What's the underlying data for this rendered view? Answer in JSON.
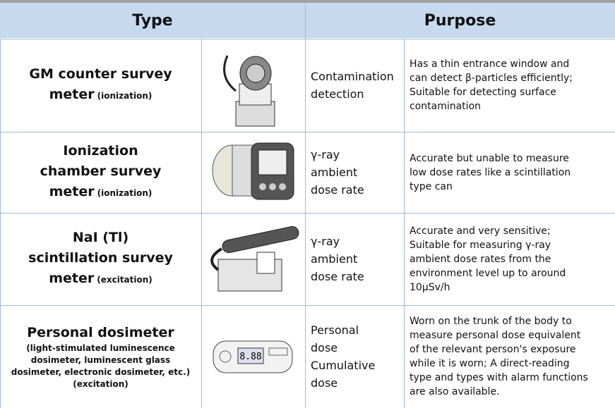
{
  "header": {
    "type": "Type",
    "purpose": "Purpose"
  },
  "rows": [
    {
      "name": "GM counter survey meter",
      "note": "(ionization)",
      "use": [
        "Contamination",
        "detection"
      ],
      "description": [
        "Has a thin entrance window and",
        "can detect β-particles efficiently;",
        "Suitable for detecting surface",
        "contamination"
      ]
    },
    {
      "name": "Ionization chamber survey meter",
      "note": "(ionization)",
      "use": [
        "γ-ray",
        "ambient",
        "dose rate"
      ],
      "description": [
        "Accurate but unable to measure",
        "low dose rates like a scintillation",
        "type can"
      ]
    },
    {
      "name": "NaI (Tl) scintillation survey meter",
      "note": "(excitation)",
      "use": [
        "γ-ray",
        "ambient",
        "dose rate"
      ],
      "description": [
        "Accurate and very sensitive;",
        "Suitable for measuring γ-ray",
        "ambient dose rates from the",
        "environment level up to around",
        "10μSv/h"
      ]
    },
    {
      "name": "Personal dosimeter",
      "note": "(light-stimulated luminescence dosimeter, luminescent glass dosimeter, electronic dosimeter, etc.) (excitation)",
      "use": [
        "Personal",
        "dose",
        "Cumulative",
        "dose"
      ],
      "description": [
        "Worn on the trunk of the body to",
        "measure personal dose equivalent",
        "of the relevant person's exposure",
        "while it is worn; A direct-reading",
        "type and types with alarm functions",
        "are also available."
      ]
    }
  ]
}
